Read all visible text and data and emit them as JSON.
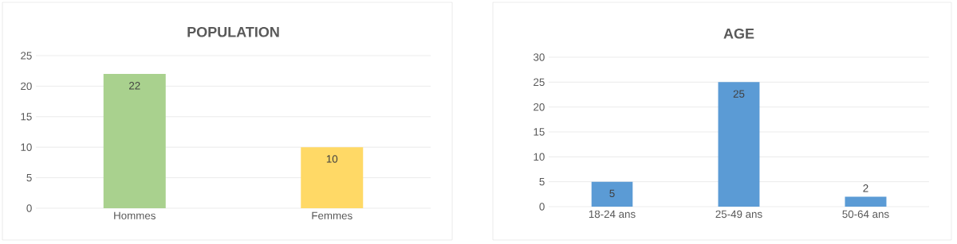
{
  "chart_data": [
    {
      "type": "bar",
      "title": "POPULATION",
      "categories": [
        "Hommes",
        "Femmes"
      ],
      "values": [
        22,
        10
      ],
      "colors": [
        "#a9d18e",
        "#ffd966"
      ],
      "ylim": [
        0,
        25
      ],
      "yticks": [
        0,
        5,
        10,
        15,
        20,
        25
      ],
      "grid": "y",
      "data_labels": true
    },
    {
      "type": "bar",
      "title": "AGE",
      "categories": [
        "18-24 ans",
        "25-49 ans",
        "50-64 ans"
      ],
      "values": [
        5,
        25,
        2
      ],
      "color": "#5b9bd5",
      "ylim": [
        0,
        30
      ],
      "yticks": [
        0,
        5,
        10,
        15,
        20,
        25,
        30
      ],
      "grid": "y",
      "data_labels": true
    }
  ]
}
